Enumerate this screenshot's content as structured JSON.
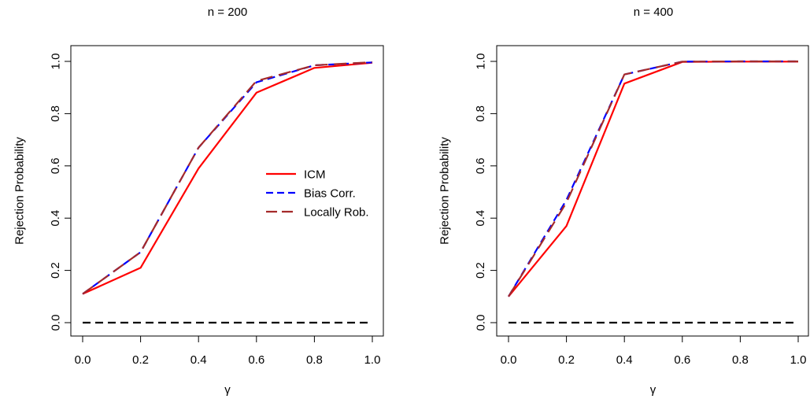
{
  "chart_data": [
    {
      "type": "line",
      "title": "n = 200",
      "xlabel": "γ",
      "ylabel": "Rejection Probability",
      "xlim": [
        0,
        1
      ],
      "ylim": [
        0,
        1
      ],
      "xticks": [
        0.0,
        0.2,
        0.4,
        0.6,
        0.8,
        1.0
      ],
      "yticks": [
        0.0,
        0.2,
        0.4,
        0.6,
        0.8,
        1.0
      ],
      "tick_format": "one-decimal",
      "grid": false,
      "legend_position": "right",
      "x": [
        0.0,
        0.2,
        0.4,
        0.6,
        0.8,
        1.0
      ],
      "series": [
        {
          "name": "ICM",
          "values": [
            0.11,
            0.21,
            0.59,
            0.88,
            0.975,
            0.995
          ],
          "color": "#ff0000",
          "dash": "solid"
        },
        {
          "name": "Bias Corr.",
          "values": [
            0.11,
            0.27,
            0.67,
            0.92,
            0.985,
            0.996
          ],
          "color": "#0000ff",
          "dash": "dashed"
        },
        {
          "name": "Locally Rob.",
          "values": [
            0.11,
            0.27,
            0.67,
            0.925,
            0.985,
            0.997
          ],
          "color": "#a52a2a",
          "dash": "long-dashed"
        },
        {
          "name": "",
          "values": [
            0.0,
            0.0,
            0.0,
            0.0,
            0.0,
            0.0
          ],
          "color": "#000000",
          "dash": "dashed"
        }
      ]
    },
    {
      "type": "line",
      "title": "n = 400",
      "xlabel": "γ",
      "ylabel": "Rejection Probability",
      "xlim": [
        0,
        1
      ],
      "ylim": [
        0,
        1
      ],
      "xticks": [
        0.0,
        0.2,
        0.4,
        0.6,
        0.8,
        1.0
      ],
      "yticks": [
        0.0,
        0.2,
        0.4,
        0.6,
        0.8,
        1.0
      ],
      "tick_format": "one-decimal",
      "grid": false,
      "x": [
        0.0,
        0.2,
        0.4,
        0.6,
        0.8,
        1.0
      ],
      "series": [
        {
          "name": "ICM",
          "values": [
            0.1,
            0.37,
            0.915,
            0.998,
            0.999,
            0.999
          ],
          "color": "#ff0000",
          "dash": "solid"
        },
        {
          "name": "Bias Corr.",
          "values": [
            0.1,
            0.47,
            0.95,
            0.999,
            1.0,
            1.0
          ],
          "color": "#0000ff",
          "dash": "dashed"
        },
        {
          "name": "Locally Rob.",
          "values": [
            0.1,
            0.46,
            0.95,
            0.999,
            1.0,
            1.0
          ],
          "color": "#a52a2a",
          "dash": "long-dashed"
        },
        {
          "name": "",
          "values": [
            0.0,
            0.0,
            0.0,
            0.0,
            0.0,
            0.0
          ],
          "color": "#000000",
          "dash": "dashed"
        }
      ]
    }
  ]
}
